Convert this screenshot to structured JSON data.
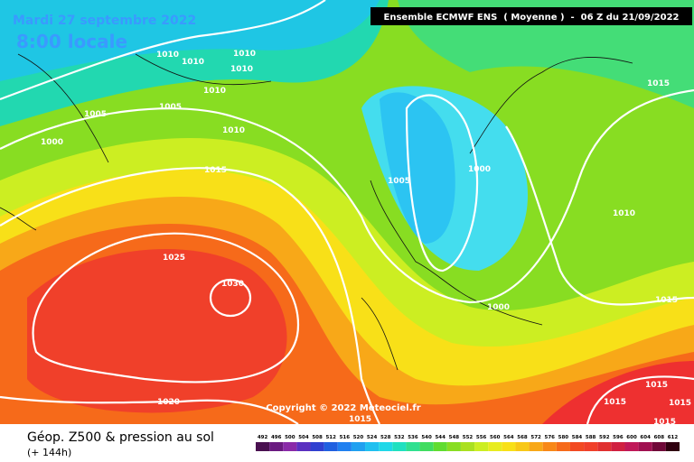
{
  "header": {
    "date": "Mardi 27 septembre 2022",
    "time": "8:00 locale",
    "run": "Ensemble ECMWF ENS  ( Moyenne )  -  06 Z du 21/09/2022"
  },
  "isobar_labels": [
    "1010",
    "1010",
    "1010",
    "1010",
    "1010",
    "1005",
    "1005",
    "1000",
    "1010",
    "1015",
    "1025",
    "1030",
    "1020",
    "1015",
    "1005",
    "1000",
    "1010",
    "1015",
    "1015",
    "1000",
    "1015",
    "1015",
    "1015",
    "1015"
  ],
  "copyright": "Copyright © 2022 Meteociel.fr",
  "legend": {
    "title": "Géop. Z500 & pression au sol",
    "subtitle": "(+ 144h)",
    "scale": [
      492,
      496,
      500,
      504,
      508,
      512,
      516,
      520,
      524,
      528,
      532,
      536,
      540,
      544,
      548,
      552,
      556,
      560,
      564,
      568,
      572,
      576,
      580,
      584,
      588,
      592,
      596,
      600,
      604,
      608,
      612
    ]
  }
}
